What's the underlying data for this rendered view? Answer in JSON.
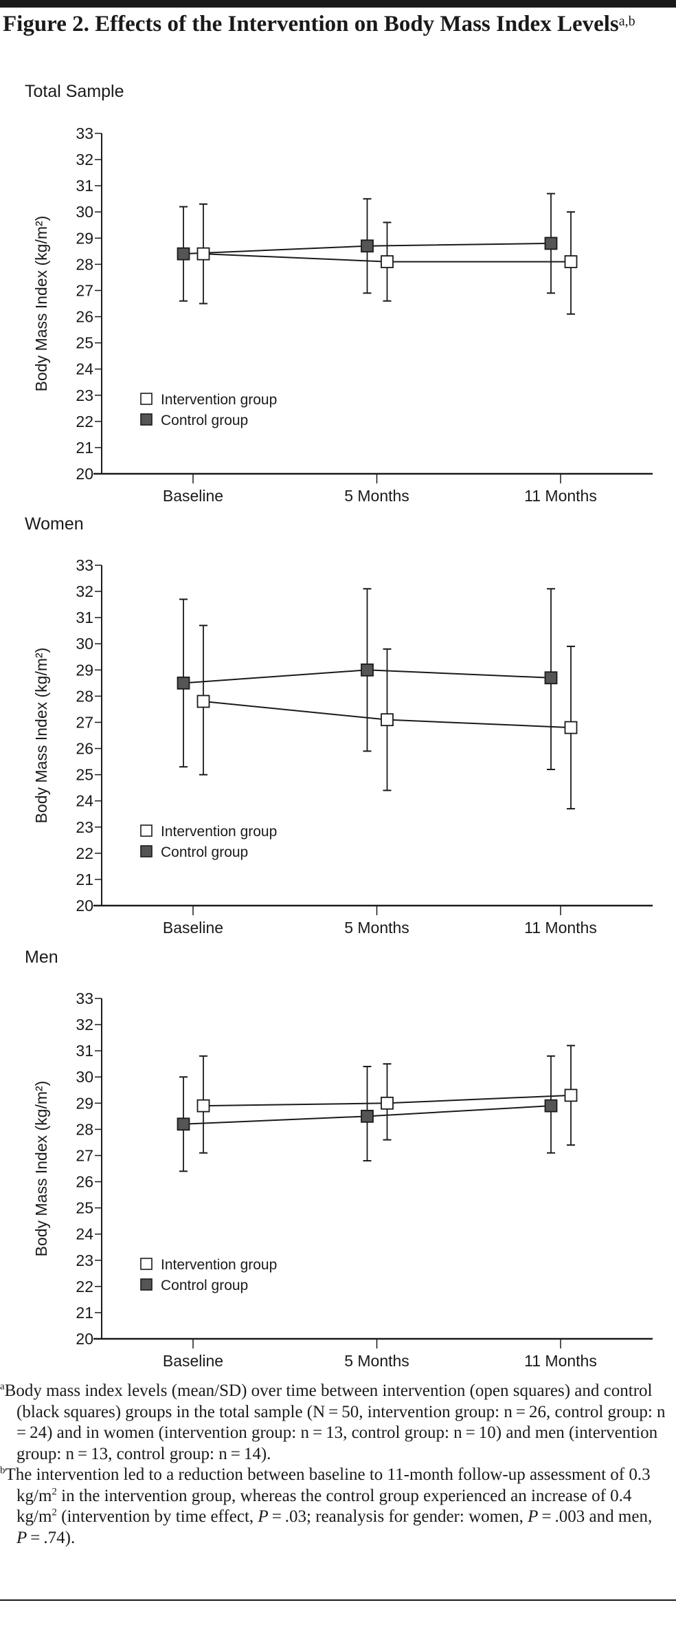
{
  "figure": {
    "title": "Figure 2. Effects of the Intervention on Body Mass Index Levels",
    "title_superscript": "a,b"
  },
  "chart_data": [
    {
      "type": "line",
      "panel_title": "Total Sample",
      "ylabel": "Body Mass Index (kg/m²)",
      "categories": [
        "Baseline",
        "5 Months",
        "11 Months"
      ],
      "ylim": [
        20,
        33
      ],
      "yticks": [
        20,
        21,
        22,
        23,
        24,
        25,
        26,
        27,
        28,
        29,
        30,
        31,
        32,
        33
      ],
      "grid": false,
      "legend_position": "bottom-left",
      "series": [
        {
          "name": "Intervention group",
          "marker": "open-square",
          "fill": "#ffffff",
          "values": [
            28.4,
            28.1,
            28.1
          ],
          "error_low": [
            26.5,
            26.6,
            26.1
          ],
          "error_high": [
            30.3,
            29.6,
            30.0
          ]
        },
        {
          "name": "Control group",
          "marker": "filled-square",
          "fill": "#555555",
          "values": [
            28.4,
            28.7,
            28.8
          ],
          "error_low": [
            26.6,
            26.9,
            26.9
          ],
          "error_high": [
            30.2,
            30.5,
            30.7
          ]
        }
      ]
    },
    {
      "type": "line",
      "panel_title": "Women",
      "ylabel": "Body Mass Index (kg/m²)",
      "categories": [
        "Baseline",
        "5 Months",
        "11 Months"
      ],
      "ylim": [
        20,
        33
      ],
      "yticks": [
        20,
        21,
        22,
        23,
        24,
        25,
        26,
        27,
        28,
        29,
        30,
        31,
        32,
        33
      ],
      "grid": false,
      "legend_position": "bottom-left",
      "series": [
        {
          "name": "Intervention group",
          "marker": "open-square",
          "fill": "#ffffff",
          "values": [
            27.8,
            27.1,
            26.8
          ],
          "error_low": [
            25.0,
            24.4,
            23.7
          ],
          "error_high": [
            30.7,
            29.8,
            29.9
          ]
        },
        {
          "name": "Control group",
          "marker": "filled-square",
          "fill": "#555555",
          "values": [
            28.5,
            29.0,
            28.7
          ],
          "error_low": [
            25.3,
            25.9,
            25.2
          ],
          "error_high": [
            31.7,
            32.1,
            32.1
          ]
        }
      ]
    },
    {
      "type": "line",
      "panel_title": "Men",
      "ylabel": "Body Mass Index (kg/m²)",
      "categories": [
        "Baseline",
        "5 Months",
        "11 Months"
      ],
      "ylim": [
        20,
        33
      ],
      "yticks": [
        20,
        21,
        22,
        23,
        24,
        25,
        26,
        27,
        28,
        29,
        30,
        31,
        32,
        33
      ],
      "grid": false,
      "legend_position": "bottom-left",
      "series": [
        {
          "name": "Intervention group",
          "marker": "open-square",
          "fill": "#ffffff",
          "values": [
            28.9,
            29.0,
            29.3
          ],
          "error_low": [
            27.1,
            27.6,
            27.4
          ],
          "error_high": [
            30.8,
            30.5,
            31.2
          ]
        },
        {
          "name": "Control group",
          "marker": "filled-square",
          "fill": "#555555",
          "values": [
            28.2,
            28.5,
            28.9
          ],
          "error_low": [
            26.4,
            26.8,
            27.1
          ],
          "error_high": [
            30.0,
            30.4,
            30.8
          ]
        }
      ]
    }
  ],
  "footnotes": [
    {
      "marker": "a",
      "segments": [
        {
          "t": "Body mass index levels (mean/SD) over time between intervention (open squares) and control (black squares) groups in the total sample (N = 50, intervention group: n = 26, control group: n = 24) and in women (intervention group: n = 13, control group: n = 10) and men (intervention group: n = 13, control group: n = 14)."
        }
      ]
    },
    {
      "marker": "b",
      "segments": [
        {
          "t": "The intervention led to a reduction between baseline to 11-month follow-up assessment of 0.3 kg/m"
        },
        {
          "sup": "2"
        },
        {
          "t": " in the intervention group, whereas the control group experienced an increase of 0.4 kg/m"
        },
        {
          "sup": "2"
        },
        {
          "t": " (intervention by time effect, "
        },
        {
          "i": "P"
        },
        {
          "t": " = .03; reanalysis for gender: women, "
        },
        {
          "i": "P"
        },
        {
          "t": " = .003 and men, "
        },
        {
          "i": "P"
        },
        {
          "t": " = .74)."
        }
      ]
    }
  ]
}
